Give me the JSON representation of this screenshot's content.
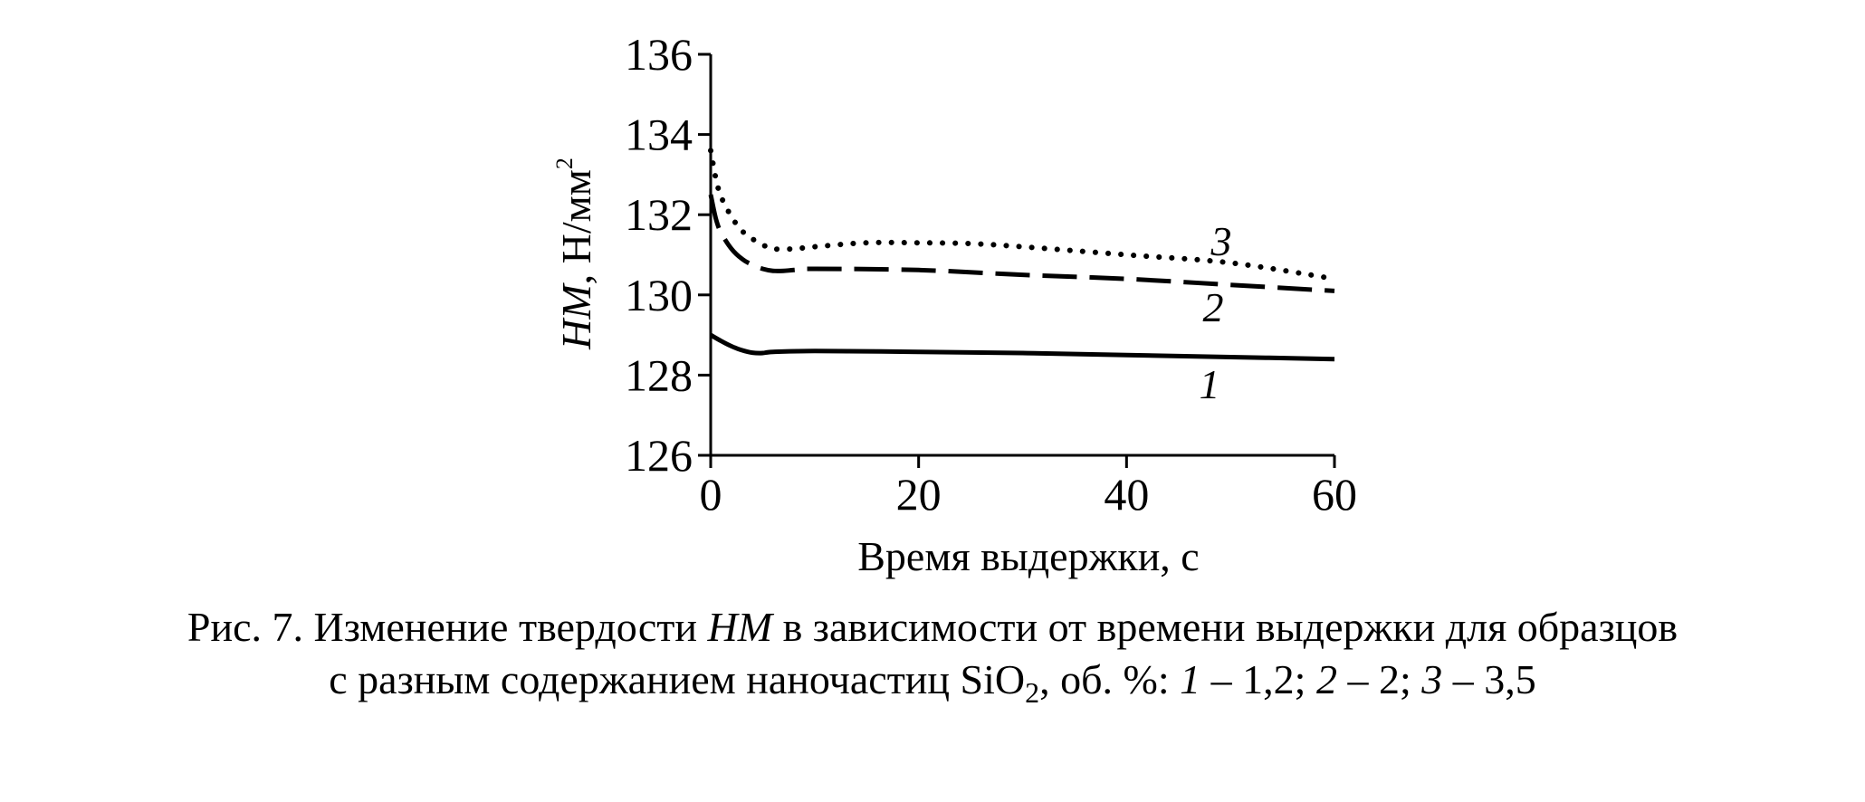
{
  "chart_data": {
    "type": "line",
    "xlabel": "Время выдержки, с",
    "ylabel_main": "НМ",
    "ylabel_unit": ", Н/мм",
    "ylabel_sup": "2",
    "xlim": [
      0,
      60
    ],
    "ylim": [
      126,
      136
    ],
    "xticks": [
      0,
      20,
      40,
      60
    ],
    "yticks": [
      126,
      128,
      130,
      132,
      134,
      136
    ],
    "grid": false,
    "series": [
      {
        "name": "1",
        "style": "solid",
        "x": [
          0,
          1,
          2,
          3,
          4,
          5,
          6,
          10,
          20,
          30,
          40,
          50,
          60
        ],
        "y": [
          129.0,
          128.85,
          128.72,
          128.62,
          128.56,
          128.55,
          128.58,
          128.6,
          128.58,
          128.55,
          128.5,
          128.45,
          128.4
        ]
      },
      {
        "name": "2",
        "style": "dashed",
        "x": [
          0,
          0.5,
          1,
          2,
          3,
          4,
          5,
          6,
          7,
          8,
          10,
          20,
          30,
          40,
          50,
          60
        ],
        "y": [
          132.5,
          131.9,
          131.55,
          131.15,
          130.9,
          130.75,
          130.65,
          130.6,
          130.6,
          130.62,
          130.65,
          130.62,
          130.5,
          130.4,
          130.25,
          130.1
        ]
      },
      {
        "name": "3",
        "style": "dotted",
        "x": [
          0,
          0.5,
          1,
          2,
          3,
          4,
          5,
          6,
          8,
          10,
          15,
          20,
          25,
          30,
          40,
          50,
          60
        ],
        "y": [
          133.6,
          132.9,
          132.45,
          131.95,
          131.6,
          131.4,
          131.25,
          131.15,
          131.15,
          131.2,
          131.3,
          131.3,
          131.28,
          131.2,
          131.0,
          130.8,
          130.4
        ]
      }
    ]
  },
  "caption": {
    "fig": "Рис. 7.",
    "line1_a": " Изменение твердости ",
    "hm": "НМ",
    "line1_b": " в зависимости от времени выдержки для образцов",
    "line2_a": "с разным содержанием наночастиц SiO",
    "sub2": "2",
    "line2_b": ", об. %: ",
    "n1": "1",
    "v1": " – 1,2; ",
    "n2": "2",
    "v2": " – 2; ",
    "n3": "3",
    "v3": " – 3,5"
  }
}
